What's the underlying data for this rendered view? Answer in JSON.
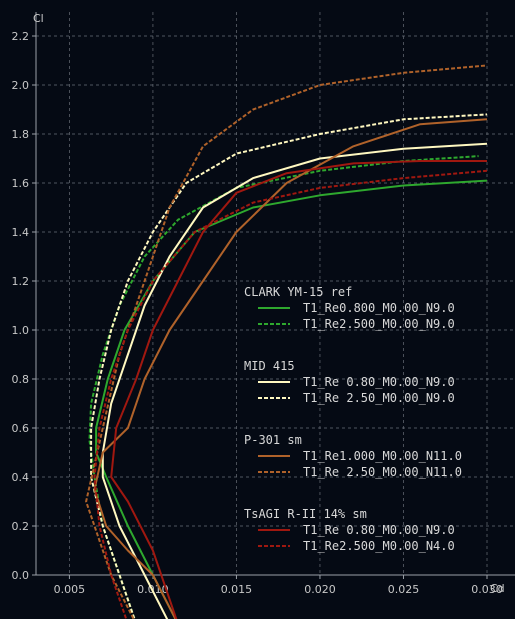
{
  "chart_data": {
    "type": "line",
    "title": "",
    "xlabel": "Cd",
    "ylabel": "Cl",
    "xlim": [
      0.003,
      0.03
    ],
    "ylim": [
      0.0,
      2.25
    ],
    "grid": true,
    "legend_position": "center-right",
    "x_ticks": [
      "0.005",
      "0.010",
      "0.015",
      "0.020",
      "0.025",
      "0.030"
    ],
    "y_ticks": [
      "0.0",
      "0.2",
      "0.4",
      "0.6",
      "0.8",
      "1.0",
      "1.2",
      "1.4",
      "1.6",
      "1.8",
      "2.0",
      "2.2"
    ],
    "groups": [
      {
        "name": "CLARK YM-15 ref",
        "series": [
          {
            "name": "T1_Re0.800_M0.00_N9.0",
            "color": "#2ea82e",
            "dash": false,
            "points": [
              [
                0.0115,
                -0.2
              ],
              [
                0.01,
                0.0
              ],
              [
                0.0085,
                0.2
              ],
              [
                0.0072,
                0.4
              ],
              [
                0.0066,
                0.5
              ],
              [
                0.0066,
                0.6
              ],
              [
                0.0073,
                0.8
              ],
              [
                0.0083,
                1.0
              ],
              [
                0.01,
                1.2
              ],
              [
                0.0125,
                1.4
              ],
              [
                0.016,
                1.5
              ],
              [
                0.02,
                1.55
              ],
              [
                0.025,
                1.59
              ],
              [
                0.03,
                1.61
              ]
            ]
          },
          {
            "name": "T1_Re2.500_M0.00_N9.0",
            "color": "#2ea82e",
            "dash": true,
            "points": [
              [
                0.009,
                -0.2
              ],
              [
                0.008,
                0.0
              ],
              [
                0.007,
                0.2
              ],
              [
                0.0065,
                0.4
              ],
              [
                0.0062,
                0.55
              ],
              [
                0.0063,
                0.7
              ],
              [
                0.007,
                0.9
              ],
              [
                0.008,
                1.1
              ],
              [
                0.0095,
                1.3
              ],
              [
                0.0115,
                1.45
              ],
              [
                0.015,
                1.58
              ],
              [
                0.02,
                1.65
              ],
              [
                0.025,
                1.69
              ],
              [
                0.0295,
                1.71
              ]
            ]
          }
        ]
      },
      {
        "name": "MID 415",
        "series": [
          {
            "name": "T1_Re 0.80_M0.00_N9.0",
            "color": "#fff8c0",
            "dash": false,
            "points": [
              [
                0.011,
                -0.2
              ],
              [
                0.0095,
                0.0
              ],
              [
                0.008,
                0.2
              ],
              [
                0.007,
                0.4
              ],
              [
                0.007,
                0.5
              ],
              [
                0.0075,
                0.7
              ],
              [
                0.0085,
                0.9
              ],
              [
                0.0095,
                1.1
              ],
              [
                0.011,
                1.3
              ],
              [
                0.013,
                1.5
              ],
              [
                0.016,
                1.62
              ],
              [
                0.02,
                1.7
              ],
              [
                0.025,
                1.74
              ],
              [
                0.03,
                1.76
              ]
            ]
          },
          {
            "name": "T1_Re 2.50_M0.00_N9.0",
            "color": "#fff8c0",
            "dash": true,
            "points": [
              [
                0.009,
                -0.2
              ],
              [
                0.008,
                0.0
              ],
              [
                0.007,
                0.2
              ],
              [
                0.0063,
                0.4
              ],
              [
                0.0063,
                0.6
              ],
              [
                0.0068,
                0.8
              ],
              [
                0.0075,
                1.0
              ],
              [
                0.0085,
                1.2
              ],
              [
                0.01,
                1.4
              ],
              [
                0.012,
                1.6
              ],
              [
                0.015,
                1.72
              ],
              [
                0.02,
                1.8
              ],
              [
                0.025,
                1.86
              ],
              [
                0.03,
                1.88
              ]
            ]
          }
        ]
      },
      {
        "name": "P-301 sm",
        "series": [
          {
            "name": "T1_Re1.000_M0.00_N11.0",
            "color": "#b0622a",
            "dash": false,
            "points": [
              [
                0.0115,
                -0.2
              ],
              [
                0.01,
                0.0
              ],
              [
                0.0085,
                0.1
              ],
              [
                0.0072,
                0.2
              ],
              [
                0.0065,
                0.35
              ],
              [
                0.007,
                0.5
              ],
              [
                0.0085,
                0.6
              ],
              [
                0.0095,
                0.8
              ],
              [
                0.011,
                1.0
              ],
              [
                0.013,
                1.2
              ],
              [
                0.015,
                1.4
              ],
              [
                0.018,
                1.6
              ],
              [
                0.022,
                1.75
              ],
              [
                0.026,
                1.84
              ],
              [
                0.03,
                1.86
              ]
            ]
          },
          {
            "name": "T1_Re 2.50_M0.00_N11.0",
            "color": "#b0622a",
            "dash": true,
            "points": [
              [
                0.009,
                -0.2
              ],
              [
                0.0075,
                0.0
              ],
              [
                0.0065,
                0.2
              ],
              [
                0.006,
                0.3
              ],
              [
                0.0065,
                0.45
              ],
              [
                0.007,
                0.6
              ],
              [
                0.008,
                0.9
              ],
              [
                0.0095,
                1.2
              ],
              [
                0.011,
                1.5
              ],
              [
                0.013,
                1.75
              ],
              [
                0.016,
                1.9
              ],
              [
                0.02,
                2.0
              ],
              [
                0.025,
                2.05
              ],
              [
                0.03,
                2.08
              ]
            ]
          }
        ]
      },
      {
        "name": "TsAGI R-II 14% sm",
        "series": [
          {
            "name": "T1_Re 0.80_M0.00_N9.0",
            "color": "#a01810",
            "dash": false,
            "points": [
              [
                0.0115,
                -0.2
              ],
              [
                0.01,
                0.1
              ],
              [
                0.0085,
                0.3
              ],
              [
                0.0075,
                0.4
              ],
              [
                0.0078,
                0.6
              ],
              [
                0.009,
                0.8
              ],
              [
                0.01,
                1.0
              ],
              [
                0.0115,
                1.2
              ],
              [
                0.013,
                1.4
              ],
              [
                0.015,
                1.56
              ],
              [
                0.018,
                1.64
              ],
              [
                0.022,
                1.68
              ],
              [
                0.026,
                1.69
              ],
              [
                0.03,
                1.69
              ]
            ]
          },
          {
            "name": "T1_Re2.500_M0.00_N4.0",
            "color": "#a01810",
            "dash": true,
            "points": [
              [
                0.0085,
                -0.2
              ],
              [
                0.0075,
                0.0
              ],
              [
                0.0068,
                0.2
              ],
              [
                0.0065,
                0.4
              ],
              [
                0.0068,
                0.6
              ],
              [
                0.0075,
                0.8
              ],
              [
                0.0085,
                1.0
              ],
              [
                0.01,
                1.2
              ],
              [
                0.0125,
                1.4
              ],
              [
                0.016,
                1.52
              ],
              [
                0.02,
                1.58
              ],
              [
                0.025,
                1.62
              ],
              [
                0.03,
                1.65
              ]
            ]
          }
        ]
      }
    ]
  }
}
